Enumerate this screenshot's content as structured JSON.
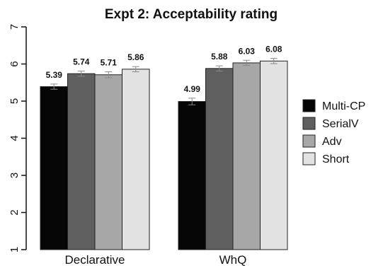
{
  "chart_data": {
    "type": "bar",
    "title": "Expt 2: Acceptability rating",
    "xlabel": "",
    "ylabel": "",
    "ylim": [
      1,
      7
    ],
    "yticks": [
      1,
      2,
      3,
      4,
      5,
      6,
      7
    ],
    "categories": [
      "Declarative",
      "WhQ"
    ],
    "series": [
      {
        "name": "Multi-CP",
        "color": "#050505",
        "values": [
          5.39,
          4.99
        ],
        "labels": [
          "5.39",
          "4.99"
        ],
        "errors": [
          0.07,
          0.09
        ]
      },
      {
        "name": "SerialV",
        "color": "#5f5f5f",
        "values": [
          5.74,
          5.88
        ],
        "labels": [
          "5.74",
          "5.88"
        ],
        "errors": [
          0.07,
          0.07
        ]
      },
      {
        "name": "Adv",
        "color": "#a7a7a7",
        "values": [
          5.71,
          6.03
        ],
        "labels": [
          "5.71",
          "6.03"
        ],
        "errors": [
          0.08,
          0.07
        ]
      },
      {
        "name": "Short",
        "color": "#e2e2e2",
        "values": [
          5.86,
          6.08
        ],
        "labels": [
          "5.86",
          "6.08"
        ],
        "errors": [
          0.07,
          0.07
        ]
      }
    ],
    "legend": "right",
    "grid": false
  }
}
